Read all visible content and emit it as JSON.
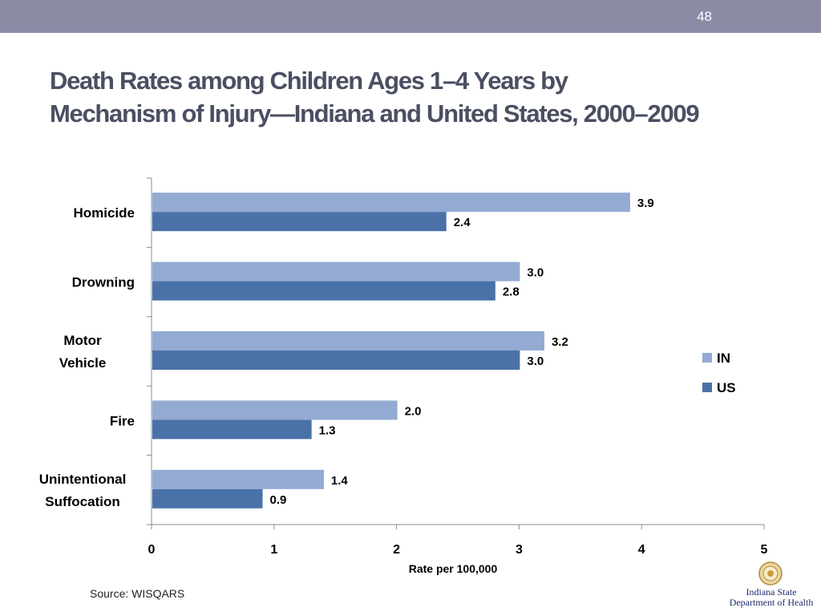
{
  "slide": {
    "number": "48"
  },
  "title": {
    "line1": "Death Rates among Children Ages 1–4 Years by",
    "line2": "Mechanism of Injury—Indiana and United States, 2000–2009"
  },
  "source": "Source: WISQARS",
  "logo": {
    "line1": "Indiana State",
    "line2": "Department of Health"
  },
  "colors": {
    "IN": "#93aad3",
    "US": "#4a72a8",
    "header_bar": "#8b8ba6",
    "title": "#4a4f62"
  },
  "chart_data": {
    "type": "bar",
    "orientation": "horizontal",
    "categories": [
      [
        "Homicide"
      ],
      [
        "Drowning"
      ],
      [
        "Motor",
        "Vehicle"
      ],
      [
        "Fire"
      ],
      [
        "Unintentional",
        "Suffocation"
      ]
    ],
    "series": [
      {
        "name": "IN",
        "values": [
          3.9,
          3.0,
          3.2,
          2.0,
          1.4
        ],
        "labels": [
          "3.9",
          "3.0",
          "3.2",
          "2.0",
          "1.4"
        ]
      },
      {
        "name": "US",
        "values": [
          2.4,
          2.8,
          3.0,
          1.3,
          0.9
        ],
        "labels": [
          "2.4",
          "2.8",
          "3.0",
          "1.3",
          "0.9"
        ]
      }
    ],
    "xlabel": "Rate per 100,000",
    "xlim": [
      0,
      5
    ],
    "xticks": [
      "0",
      "1",
      "2",
      "3",
      "4",
      "5"
    ],
    "grid": false,
    "legend": "right"
  }
}
